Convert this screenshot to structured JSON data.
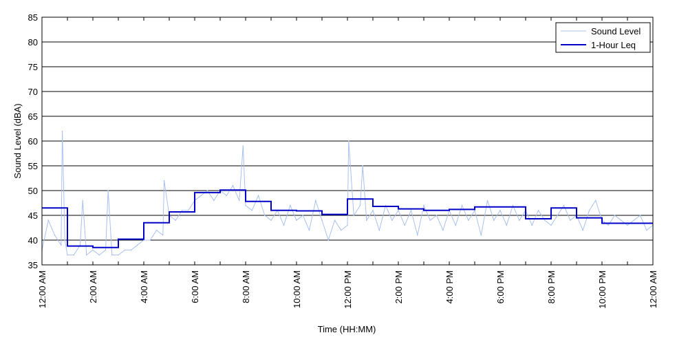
{
  "chart_data": {
    "type": "line",
    "xlabel": "Time (HH:MM)",
    "ylabel": "Sound Level (dBA)",
    "ylim": [
      35,
      85
    ],
    "yticks": [
      35,
      40,
      45,
      50,
      55,
      60,
      65,
      70,
      75,
      80,
      85
    ],
    "xlim_hours": [
      0,
      24
    ],
    "xticks": [
      {
        "hour": 0,
        "label": "12:00 AM"
      },
      {
        "hour": 2,
        "label": "2:00 AM"
      },
      {
        "hour": 4,
        "label": "4:00 AM"
      },
      {
        "hour": 6,
        "label": "6:00 AM"
      },
      {
        "hour": 8,
        "label": "8:00 AM"
      },
      {
        "hour": 10,
        "label": "10:00 AM"
      },
      {
        "hour": 12,
        "label": "12:00 PM"
      },
      {
        "hour": 14,
        "label": "2:00 PM"
      },
      {
        "hour": 16,
        "label": "4:00 PM"
      },
      {
        "hour": 18,
        "label": "6:00 PM"
      },
      {
        "hour": 20,
        "label": "8:00 PM"
      },
      {
        "hour": 22,
        "label": "10:00 PM"
      },
      {
        "hour": 24,
        "label": "12:00 AM"
      }
    ],
    "grid": "horizontal",
    "legend_position": "top-right",
    "series": [
      {
        "name": "Sound Level",
        "color": "#a8c0f0",
        "hours": [
          0,
          0.25,
          0.5,
          0.75,
          0.8,
          0.9,
          1,
          1.25,
          1.5,
          1.6,
          1.75,
          2,
          2.25,
          2.5,
          2.6,
          2.75,
          3,
          3.25,
          3.5,
          3.75,
          4,
          4.25,
          4.5,
          4.75,
          4.8,
          5,
          5.25,
          5.5,
          5.75,
          6,
          6.25,
          6.5,
          6.75,
          7,
          7.25,
          7.5,
          7.75,
          7.9,
          8,
          8.25,
          8.5,
          8.75,
          9,
          9.25,
          9.5,
          9.75,
          10,
          10.25,
          10.5,
          10.75,
          11,
          11.25,
          11.5,
          11.75,
          12,
          12.05,
          12.25,
          12.5,
          12.6,
          12.75,
          13,
          13.25,
          13.5,
          13.75,
          14,
          14.25,
          14.5,
          14.75,
          15,
          15.25,
          15.5,
          15.75,
          16,
          16.25,
          16.5,
          16.75,
          17,
          17.25,
          17.5,
          17.75,
          18,
          18.25,
          18.5,
          18.75,
          19,
          19.25,
          19.5,
          19.75,
          20,
          20.25,
          20.5,
          20.75,
          21,
          21.25,
          21.5,
          21.75,
          22,
          22.25,
          22.5,
          22.75,
          23,
          23.25,
          23.5,
          23.75,
          24
        ],
        "values": [
          38,
          44,
          41,
          39,
          62,
          40,
          37,
          37,
          39,
          48,
          37,
          38,
          37,
          38,
          50,
          37,
          37,
          38,
          38,
          39,
          40,
          40,
          42,
          41,
          52,
          45,
          44,
          46,
          46,
          48,
          49,
          50,
          48,
          50,
          49,
          51,
          48,
          59,
          47,
          46,
          49,
          45,
          44,
          46,
          43,
          47,
          44,
          45,
          42,
          48,
          44,
          40,
          44,
          42,
          43,
          60,
          45,
          47,
          55,
          44,
          46,
          42,
          47,
          44,
          46,
          43,
          46,
          41,
          47,
          44,
          45,
          42,
          46,
          43,
          47,
          44,
          46,
          41,
          48,
          44,
          46,
          43,
          47,
          44,
          46,
          43,
          46,
          44,
          43,
          45,
          47,
          44,
          45,
          42,
          46,
          48,
          44,
          43,
          45,
          44,
          43,
          44,
          45,
          42,
          43
        ]
      },
      {
        "name": "1-Hour Leq",
        "color": "#0000c8",
        "values_hourly": [
          46.5,
          38.8,
          38.5,
          40.2,
          43.5,
          45.7,
          49.6,
          50.1,
          47.8,
          46.0,
          45.9,
          45.2,
          48.3,
          46.8,
          46.3,
          46.0,
          46.2,
          46.7,
          46.7,
          44.3,
          46.5,
          44.5,
          43.4,
          43.4
        ]
      }
    ]
  }
}
